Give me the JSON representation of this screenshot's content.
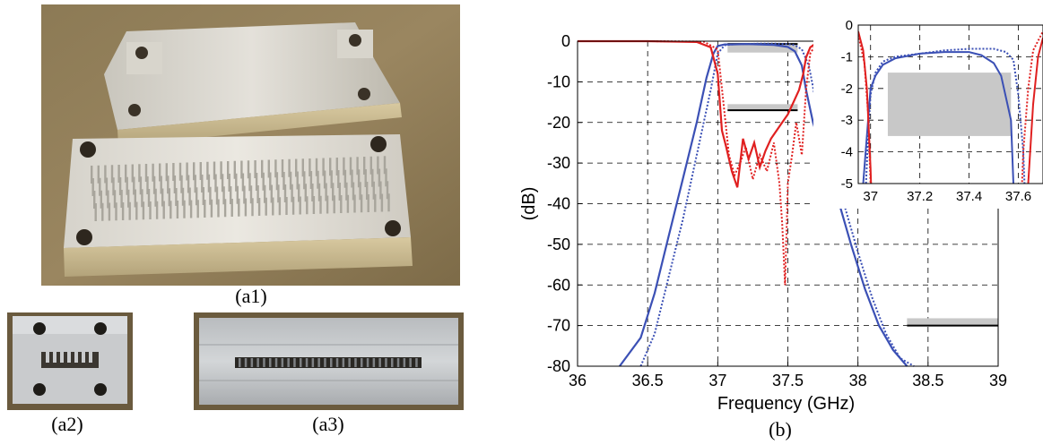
{
  "captions": {
    "a1": "(a1)",
    "a2": "(a2)",
    "a3": "(a3)",
    "b": "(b)"
  },
  "chart_data": {
    "type": "line",
    "xlabel": "Frequency (GHz)",
    "ylabel": "(dB)",
    "xlim": [
      36,
      39
    ],
    "ylim": [
      -80,
      0
    ],
    "xticks": [
      36,
      36.5,
      37,
      37.5,
      38,
      38.5,
      39
    ],
    "xtick_labels": [
      "36",
      "36.5",
      "37",
      "37.5",
      "38",
      "38.5",
      "39"
    ],
    "yticks": [
      0,
      -10,
      -20,
      -30,
      -40,
      -50,
      -60,
      -70,
      -80
    ],
    "ytick_labels": [
      "0",
      "-10",
      "-20",
      "-30",
      "-40",
      "-50",
      "-60",
      "-70",
      "-80"
    ],
    "grid": true,
    "colors": {
      "s21": "#3b50b5",
      "s11": "#e02020",
      "mask": "#c8c8c8"
    },
    "series": [
      {
        "style": "solid",
        "color": "#3b50b5",
        "x": [
          36.3,
          36.45,
          36.55,
          36.65,
          36.75,
          36.85,
          36.92,
          36.97,
          37.0,
          37.05,
          37.1,
          37.2,
          37.3,
          37.4,
          37.5,
          37.55,
          37.6,
          37.63,
          37.68,
          37.75,
          37.85,
          37.95,
          38.05,
          38.15,
          38.25,
          38.35
        ],
        "y": [
          -80,
          -73,
          -62,
          -48,
          -34,
          -20,
          -9,
          -3,
          -1.2,
          -0.8,
          -0.8,
          -0.7,
          -0.8,
          -0.9,
          -1.4,
          -2.5,
          -6,
          -12,
          -20,
          -28,
          -38,
          -50,
          -61,
          -70,
          -76,
          -80
        ]
      },
      {
        "style": "dotted",
        "color": "#3b50b5",
        "x": [
          36.45,
          36.55,
          36.65,
          36.75,
          36.85,
          36.95,
          37.0,
          37.05,
          37.1,
          37.2,
          37.3,
          37.4,
          37.5,
          37.55,
          37.6,
          37.65,
          37.7,
          37.8,
          37.9,
          38.0,
          38.1,
          38.2,
          38.3,
          38.4
        ],
        "y": [
          -80,
          -72,
          -58,
          -44,
          -28,
          -12,
          -3,
          -1.0,
          -0.8,
          -0.7,
          -0.6,
          -0.6,
          -0.7,
          -1.0,
          -2.0,
          -6,
          -15,
          -27,
          -40,
          -52,
          -63,
          -72,
          -78,
          -80
        ]
      },
      {
        "style": "solid",
        "color": "#e02020",
        "x": [
          36.0,
          36.5,
          36.85,
          36.95,
          37.0,
          37.03,
          37.06,
          37.1,
          37.14,
          37.18,
          37.22,
          37.26,
          37.3,
          37.34,
          37.38,
          37.42,
          37.46,
          37.5,
          37.54,
          37.58,
          37.61,
          37.63,
          37.66,
          37.7,
          37.8,
          38.2,
          39.0
        ],
        "y": [
          0,
          0,
          -0.2,
          -1.5,
          -8,
          -22,
          -26,
          -32,
          -36,
          -24,
          -29,
          -25,
          -31,
          -27,
          -24,
          -22,
          -20,
          -18,
          -15,
          -12,
          -8,
          -4,
          -1.5,
          -0.5,
          -0.1,
          0,
          0
        ]
      },
      {
        "style": "dotted",
        "color": "#e02020",
        "x": [
          36.0,
          36.5,
          36.9,
          37.0,
          37.04,
          37.08,
          37.12,
          37.16,
          37.2,
          37.25,
          37.3,
          37.35,
          37.4,
          37.44,
          37.46,
          37.48,
          37.5,
          37.53,
          37.56,
          37.6,
          37.63,
          37.66,
          37.7,
          37.8,
          38.2,
          39.0
        ],
        "y": [
          0,
          0,
          -0.1,
          -2,
          -15,
          -28,
          -33,
          -30,
          -26,
          -34,
          -28,
          -32,
          -25,
          -35,
          -45,
          -60,
          -35,
          -28,
          -20,
          -28,
          -12,
          -3,
          -0.8,
          -0.1,
          0,
          0
        ]
      }
    ],
    "masks": [
      {
        "type": "passband_loss",
        "x": [
          37.07,
          37.57
        ],
        "y": [
          -1.5,
          -3.5
        ]
      },
      {
        "type": "return_loss",
        "x": [
          37.07,
          37.57
        ],
        "y": -17
      },
      {
        "type": "rejection",
        "x": [
          38.35,
          39.0
        ],
        "y": -70
      }
    ],
    "inset": {
      "xlim": [
        36.95,
        37.7
      ],
      "ylim": [
        -5,
        0
      ],
      "xticks": [
        37,
        37.2,
        37.4,
        37.6
      ],
      "xtick_labels": [
        "37",
        "37.2",
        "37.4",
        "37.6"
      ],
      "yticks": [
        0,
        -1,
        -2,
        -3,
        -4,
        -5
      ],
      "ytick_labels": [
        "0",
        "-1",
        "-2",
        "-3",
        "-4",
        "-5"
      ],
      "grid": true
    }
  }
}
